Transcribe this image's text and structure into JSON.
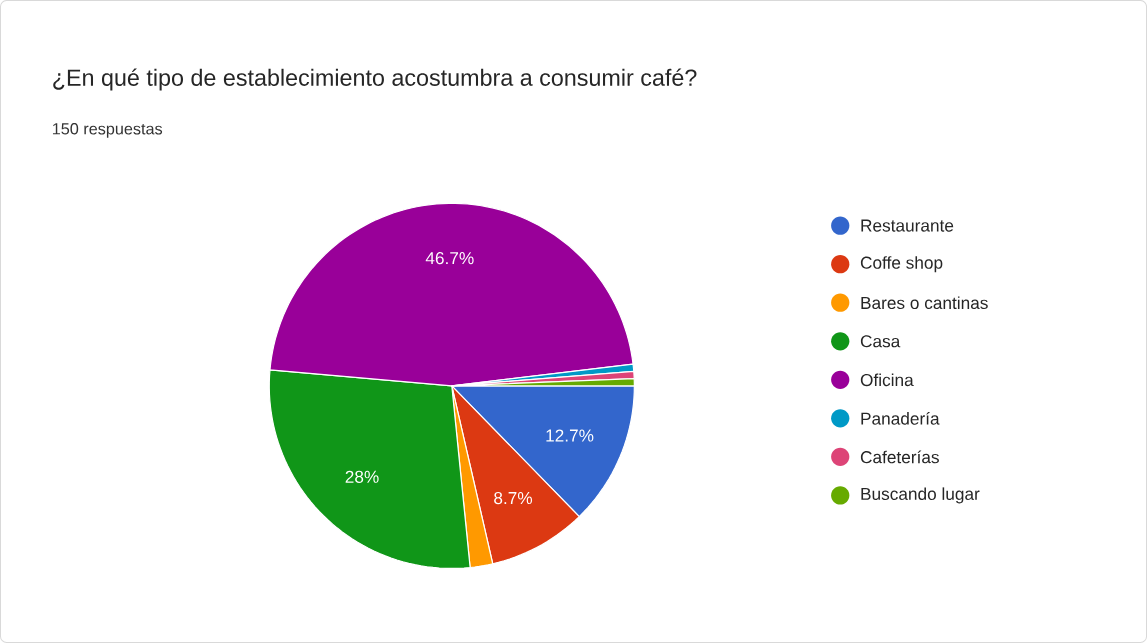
{
  "chart_data": {
    "type": "pie",
    "title": "¿En qué tipo de establecimiento acostumbra a consumir café?",
    "subtitle": "150 respuestas",
    "categories": [
      "Restaurante",
      "Coffe shop",
      "Bares o cantinas",
      "Casa",
      "Oficina",
      "Panadería",
      "Cafeterías",
      "Buscando lugar"
    ],
    "values": [
      12.7,
      8.7,
      2,
      28,
      46.7,
      0.63,
      0.63,
      0.64
    ],
    "colors": [
      "#3366cc",
      "#dc3912",
      "#ff9900",
      "#109618",
      "#990099",
      "#0099c6",
      "#dd4477",
      "#66aa00"
    ],
    "value_labels": [
      "12.7%",
      "8.7%",
      null,
      "28%",
      "46.7%",
      null,
      null,
      null
    ],
    "legend": "right"
  }
}
